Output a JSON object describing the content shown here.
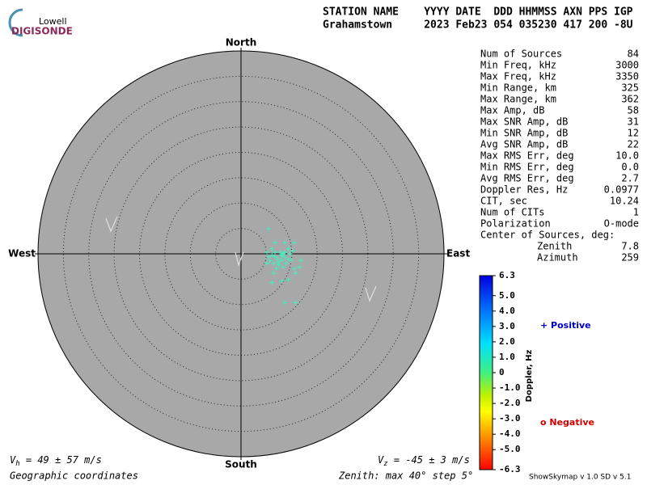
{
  "logo": {
    "top": "Lowell",
    "bottom": "DIGISONDE"
  },
  "header": {
    "line1": "STATION NAME    YYYY DATE  DDD HHMMSS AXN PPS IGP",
    "line2": "Grahamstown     2023 Feb23 054 035230 417 200 -8U"
  },
  "stats": {
    "rows": [
      [
        "Num of Sources",
        "84"
      ],
      [
        "Min Freq, kHz",
        "3000"
      ],
      [
        "Max Freq, kHz",
        "3350"
      ],
      [
        "Min Range, km",
        "325"
      ],
      [
        "Max Range, km",
        "362"
      ],
      [
        "Max Amp, dB",
        "58"
      ],
      [
        "Max SNR Amp, dB",
        "31"
      ],
      [
        "Min SNR Amp, dB",
        "12"
      ],
      [
        "Avg SNR Amp, dB",
        "22"
      ],
      [
        "Max RMS Err, deg",
        "10.0"
      ],
      [
        "Min RMS Err, deg",
        "0.0"
      ],
      [
        "Avg RMS Err, deg",
        "2.7"
      ],
      [
        "Doppler Res, Hz",
        "0.0977"
      ],
      [
        "CIT, sec",
        "10.24"
      ],
      [
        "Num of CITs",
        "1"
      ],
      [
        "Polarization",
        "O-mode"
      ]
    ],
    "center_title": "Center of Sources, deg:",
    "center_rows": [
      [
        "Zenith",
        "7.8"
      ],
      [
        "Azimuth",
        "259"
      ]
    ]
  },
  "chart_data": {
    "type": "skymap",
    "directions": {
      "north": "North",
      "east": "East",
      "south": "South",
      "west": "West"
    },
    "rlim": [
      0,
      40
    ],
    "rticks": [
      5,
      10,
      15,
      20,
      25,
      30,
      35,
      40
    ],
    "color": "#40f0c0",
    "x": [
      5.4,
      6.7,
      8.6,
      10.5,
      5.1,
      6.1,
      6.7,
      7.3,
      8.0,
      8.6,
      9.3,
      6.4,
      7.5,
      8.3,
      5.7,
      5.1,
      7.0,
      9.9,
      11.8,
      11.5,
      10.8,
      9.3,
      8.0,
      6.1,
      8.6,
      10.8,
      10.2,
      7.7,
      6.7,
      8.6,
      9.3,
      6.1,
      5.4,
      8.0,
      8.9,
      10.5,
      6.4,
      7.3,
      8.3,
      9.6
    ],
    "y": [
      4.9,
      2.2,
      2.2,
      2.2,
      0.3,
      -0.3,
      -0.6,
      -1.0,
      -1.3,
      -0.6,
      -1.0,
      -1.9,
      -2.2,
      -2.6,
      -1.3,
      -1.9,
      -2.9,
      -1.3,
      -1.3,
      -2.6,
      -3.8,
      -5.1,
      -5.4,
      -5.7,
      -9.6,
      -9.6,
      0.6,
      0.3,
      0.3,
      0.3,
      1.0,
      1.0,
      -0.6,
      -0.3,
      -1.9,
      -2.9,
      -3.8,
      -1.6,
      0,
      0
    ]
  },
  "colorbar": {
    "label": "Doppler, Hz",
    "ylim": [
      -6.3,
      6.3
    ],
    "yticks": [
      6.3,
      {
        "value": 5,
        "label": "5.0"
      },
      {
        "value": 4,
        "label": "4.0"
      },
      {
        "value": 3,
        "label": "3.0"
      },
      {
        "value": 2,
        "label": "2.0"
      },
      {
        "value": 1,
        "label": "1.0"
      },
      0,
      {
        "value": -1,
        "label": "-1.0"
      },
      {
        "value": -2,
        "label": "-2.0"
      },
      {
        "value": -3,
        "label": "-3.0"
      },
      {
        "value": -4,
        "label": "-4.0"
      },
      {
        "value": -5,
        "label": "-5.0"
      },
      -6.3
    ],
    "positive": "+ Positive",
    "negative": "o Negative"
  },
  "footer": {
    "vh_symbol": "V",
    "vh_sub": "h",
    "vh_text": " = 49 ± 57 m/s",
    "vz_symbol": "V",
    "vz_sub": "z",
    "vz_text": " = -45 ± 3 m/s",
    "coords": "Geographic coordinates",
    "zenith": "Zenith: max 40°  step 5°",
    "version": "ShowSkymap v 1.0  SD v 5.1"
  }
}
